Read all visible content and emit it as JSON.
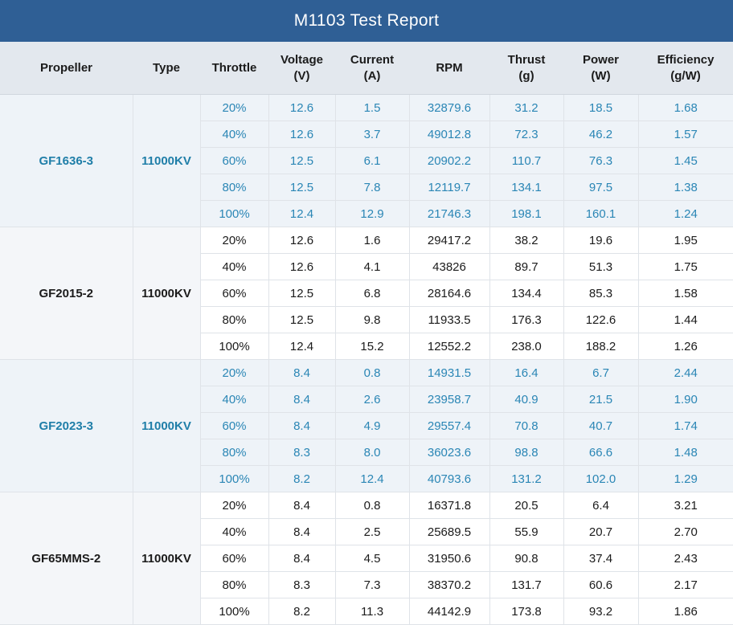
{
  "title": "M1103 Test Report",
  "headers": [
    {
      "line1": "Propeller",
      "line2": ""
    },
    {
      "line1": "Type",
      "line2": ""
    },
    {
      "line1": "Throttle",
      "line2": ""
    },
    {
      "line1": "Voltage",
      "line2": "(V)"
    },
    {
      "line1": "Current",
      "line2": "(A)"
    },
    {
      "line1": "RPM",
      "line2": ""
    },
    {
      "line1": "Thrust",
      "line2": "(g)"
    },
    {
      "line1": "Power",
      "line2": "(W)"
    },
    {
      "line1": "Efficiency",
      "line2": "(g/W)"
    }
  ],
  "colors": {
    "title_bg": "#2f5f95",
    "header_bg": "#e3e8ee",
    "blue_text": "#2a86b5"
  },
  "groups": [
    {
      "propeller": "GF1636-3",
      "type": "11000KV",
      "style": "blue",
      "rows": [
        [
          "20%",
          "12.6",
          "1.5",
          "32879.6",
          "31.2",
          "18.5",
          "1.68"
        ],
        [
          "40%",
          "12.6",
          "3.7",
          "49012.8",
          "72.3",
          "46.2",
          "1.57"
        ],
        [
          "60%",
          "12.5",
          "6.1",
          "20902.2",
          "110.7",
          "76.3",
          "1.45"
        ],
        [
          "80%",
          "12.5",
          "7.8",
          "12119.7",
          "134.1",
          "97.5",
          "1.38"
        ],
        [
          "100%",
          "12.4",
          "12.9",
          "21746.3",
          "198.1",
          "160.1",
          "1.24"
        ]
      ]
    },
    {
      "propeller": "GF2015-2",
      "type": "11000KV",
      "style": "plain",
      "rows": [
        [
          "20%",
          "12.6",
          "1.6",
          "29417.2",
          "38.2",
          "19.6",
          "1.95"
        ],
        [
          "40%",
          "12.6",
          "4.1",
          "43826",
          "89.7",
          "51.3",
          "1.75"
        ],
        [
          "60%",
          "12.5",
          "6.8",
          "28164.6",
          "134.4",
          "85.3",
          "1.58"
        ],
        [
          "80%",
          "12.5",
          "9.8",
          "11933.5",
          "176.3",
          "122.6",
          "1.44"
        ],
        [
          "100%",
          "12.4",
          "15.2",
          "12552.2",
          "238.0",
          "188.2",
          "1.26"
        ]
      ]
    },
    {
      "propeller": "GF2023-3",
      "type": "11000KV",
      "style": "blue",
      "rows": [
        [
          "20%",
          "8.4",
          "0.8",
          "14931.5",
          "16.4",
          "6.7",
          "2.44"
        ],
        [
          "40%",
          "8.4",
          "2.6",
          "23958.7",
          "40.9",
          "21.5",
          "1.90"
        ],
        [
          "60%",
          "8.4",
          "4.9",
          "29557.4",
          "70.8",
          "40.7",
          "1.74"
        ],
        [
          "80%",
          "8.3",
          "8.0",
          "36023.6",
          "98.8",
          "66.6",
          "1.48"
        ],
        [
          "100%",
          "8.2",
          "12.4",
          "40793.6",
          "131.2",
          "102.0",
          "1.29"
        ]
      ]
    },
    {
      "propeller": "GF65MMS-2",
      "type": "11000KV",
      "style": "plain",
      "rows": [
        [
          "20%",
          "8.4",
          "0.8",
          "16371.8",
          "20.5",
          "6.4",
          "3.21"
        ],
        [
          "40%",
          "8.4",
          "2.5",
          "25689.5",
          "55.9",
          "20.7",
          "2.70"
        ],
        [
          "60%",
          "8.4",
          "4.5",
          "31950.6",
          "90.8",
          "37.4",
          "2.43"
        ],
        [
          "80%",
          "8.3",
          "7.3",
          "38370.2",
          "131.7",
          "60.6",
          "2.17"
        ],
        [
          "100%",
          "8.2",
          "11.3",
          "44142.9",
          "173.8",
          "93.2",
          "1.86"
        ]
      ]
    }
  ]
}
